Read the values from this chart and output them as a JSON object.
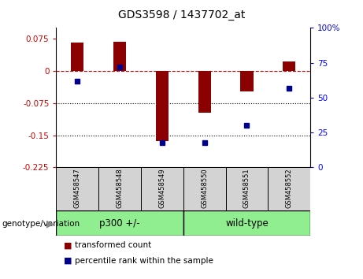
{
  "title": "GDS3598 / 1437702_at",
  "samples": [
    "GSM458547",
    "GSM458548",
    "GSM458549",
    "GSM458550",
    "GSM458551",
    "GSM458552"
  ],
  "bar_values": [
    0.065,
    0.068,
    -0.163,
    -0.098,
    -0.048,
    0.022
  ],
  "dot_values_pct": [
    62,
    72,
    18,
    18,
    30,
    57
  ],
  "bar_color": "#8B0000",
  "dot_color": "#00008B",
  "ylim_left": [
    -0.225,
    0.1
  ],
  "ylim_right": [
    0,
    100
  ],
  "yticks_left": [
    0.075,
    0,
    -0.075,
    -0.15,
    -0.225
  ],
  "yticks_left_labels": [
    "0.075",
    "0",
    "-0.075",
    "-0.15",
    "-0.225"
  ],
  "yticks_right": [
    100,
    75,
    50,
    25,
    0
  ],
  "yticks_right_labels": [
    "100%",
    "75",
    "50",
    "25",
    "0"
  ],
  "hline_y": 0,
  "dotted_lines": [
    -0.075,
    -0.15
  ],
  "group1_label": "p300 +/-",
  "group2_label": "wild-type",
  "group_color": "#90EE90",
  "sample_bg_color": "#d3d3d3",
  "legend_bar_label": "transformed count",
  "legend_dot_label": "percentile rank within the sample",
  "genotype_label": "genotype/variation"
}
